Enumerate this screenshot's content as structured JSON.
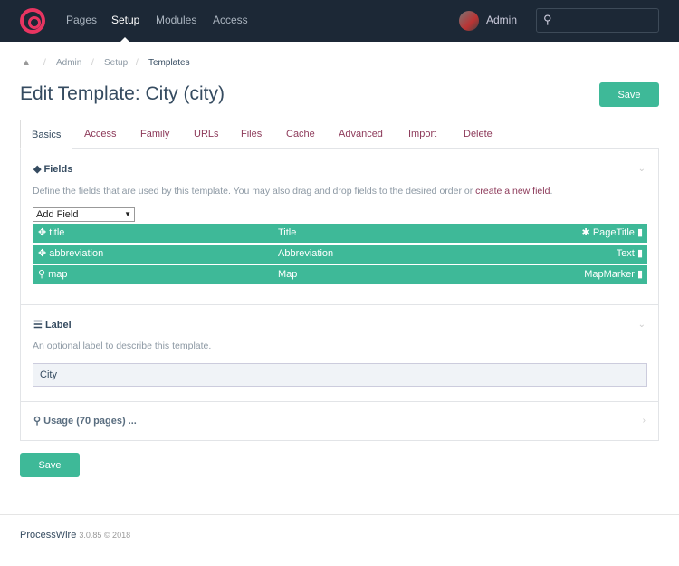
{
  "header": {
    "nav": [
      "Pages",
      "Setup",
      "Modules",
      "Access"
    ],
    "active": "Setup",
    "user": "Admin",
    "search_placeholder": ""
  },
  "breadcrumb": [
    "Admin",
    "Setup",
    "Templates"
  ],
  "page_title": "Edit Template: City (city)",
  "save_label": "Save",
  "tabs": [
    "Basics",
    "Access",
    "Family",
    "URLs",
    "Files",
    "Cache",
    "Advanced",
    "Import",
    "Delete"
  ],
  "fields_section": {
    "title": "Fields",
    "description": "Define the fields that are used by this template. You may also drag and drop fields to the desired order or ",
    "link": "create a new field",
    "link_suffix": ".",
    "add_field": "Add Field",
    "rows": [
      {
        "name": "title",
        "label": "Title",
        "type": "PageTitle",
        "icon": "arrows-icon",
        "type_icon": "asterisk-icon"
      },
      {
        "name": "abbreviation",
        "label": "Abbreviation",
        "type": "Text",
        "icon": "arrows-icon"
      },
      {
        "name": "map",
        "label": "Map",
        "type": "MapMarker",
        "icon": "map-marker-icon"
      }
    ]
  },
  "label_section": {
    "title": "Label",
    "description": "An optional label to describe this template.",
    "value": "City"
  },
  "usage_section": {
    "title": "Usage (70 pages) ..."
  },
  "footer": {
    "brand": "ProcessWire",
    "version": "3.0.85 © 2018"
  },
  "colors": {
    "accent": "#3eb998",
    "topbar": "#1c2836",
    "link": "#8d3a5a",
    "logo": "#e83561"
  }
}
